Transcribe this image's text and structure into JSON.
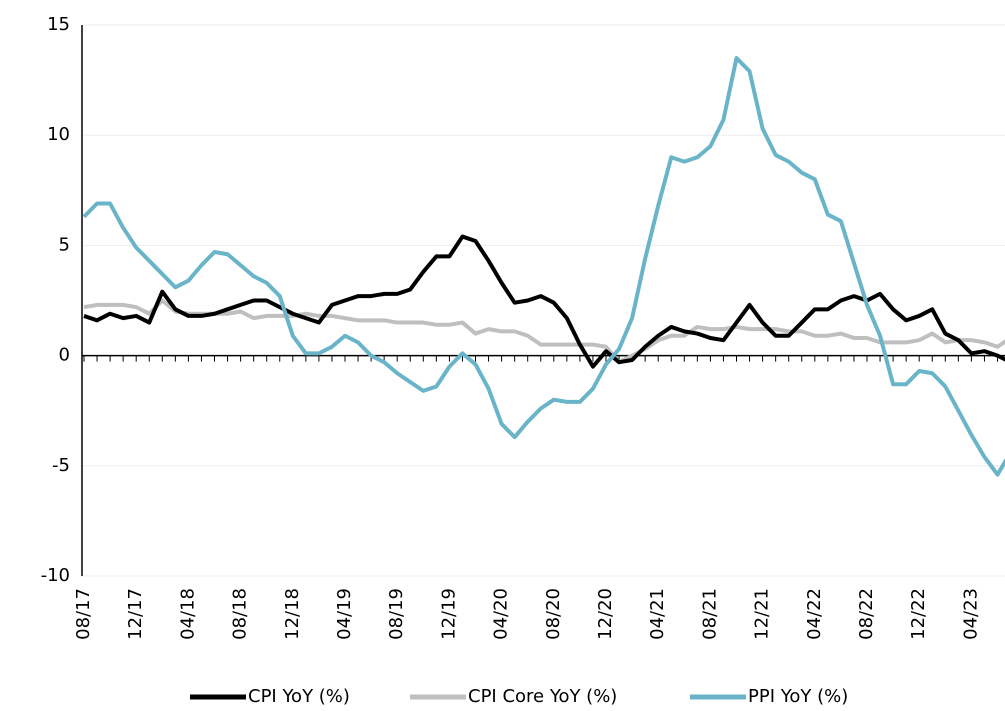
{
  "chart_data": {
    "type": "line",
    "categories": [
      "08/17",
      null,
      null,
      null,
      "12/17",
      null,
      null,
      null,
      "04/18",
      null,
      null,
      null,
      "08/18",
      null,
      null,
      null,
      "12/18",
      null,
      null,
      null,
      "04/19",
      null,
      null,
      null,
      "08/19",
      null,
      null,
      null,
      "12/19",
      null,
      null,
      null,
      "04/20",
      null,
      null,
      null,
      "08/20",
      null,
      null,
      null,
      "12/20",
      null,
      null,
      null,
      "04/21",
      null,
      null,
      null,
      "08/21",
      null,
      null,
      null,
      "12/21",
      null,
      null,
      null,
      "04/22",
      null,
      null,
      null,
      "08/22",
      null,
      null,
      null,
      "12/22",
      null,
      null,
      null,
      "04/23",
      null,
      null,
      null
    ],
    "series": [
      {
        "name": "CPI YoY (%)",
        "color": "#000000",
        "values": [
          1.8,
          1.6,
          1.9,
          1.7,
          1.8,
          1.5,
          2.9,
          2.1,
          1.8,
          1.8,
          1.9,
          2.1,
          2.3,
          2.5,
          2.5,
          2.2,
          1.9,
          1.7,
          1.5,
          2.3,
          2.5,
          2.7,
          2.7,
          2.8,
          2.8,
          3.0,
          3.8,
          4.5,
          4.5,
          5.4,
          5.2,
          4.3,
          3.3,
          2.4,
          2.5,
          2.7,
          2.4,
          1.7,
          0.5,
          -0.5,
          0.2,
          -0.3,
          -0.2,
          0.4,
          0.9,
          1.3,
          1.1,
          1.0,
          0.8,
          0.7,
          1.5,
          2.3,
          1.5,
          0.9,
          0.9,
          1.5,
          2.1,
          2.1,
          2.5,
          2.7,
          2.5,
          2.8,
          2.1,
          1.6,
          1.8,
          2.1,
          1.0,
          0.7,
          0.1,
          0.2,
          0.0,
          -0.3
        ]
      },
      {
        "name": "CPI Core YoY (%)",
        "color": "#bfbfbf",
        "values": [
          2.2,
          2.3,
          2.3,
          2.3,
          2.2,
          1.9,
          2.5,
          2.0,
          1.9,
          1.9,
          1.9,
          1.9,
          2.0,
          1.7,
          1.8,
          1.8,
          1.8,
          1.9,
          1.8,
          1.8,
          1.7,
          1.6,
          1.6,
          1.6,
          1.5,
          1.5,
          1.5,
          1.4,
          1.4,
          1.5,
          1.0,
          1.2,
          1.1,
          1.1,
          0.9,
          0.5,
          0.5,
          0.5,
          0.5,
          0.5,
          0.4,
          -0.3,
          0.0,
          0.3,
          0.7,
          0.9,
          0.9,
          1.3,
          1.2,
          1.2,
          1.3,
          1.2,
          1.2,
          1.2,
          1.1,
          1.1,
          0.9,
          0.9,
          1.0,
          0.8,
          0.8,
          0.6,
          0.6,
          0.6,
          0.7,
          1.0,
          0.6,
          0.7,
          0.7,
          0.6,
          0.4,
          0.8
        ]
      },
      {
        "name": "PPI YoY (%)",
        "color": "#6ab4c9",
        "values": [
          6.3,
          6.9,
          6.9,
          5.8,
          4.9,
          4.3,
          3.7,
          3.1,
          3.4,
          4.1,
          4.7,
          4.6,
          4.1,
          3.6,
          3.3,
          2.7,
          0.9,
          0.1,
          0.1,
          0.4,
          0.9,
          0.6,
          0.0,
          -0.3,
          -0.8,
          -1.2,
          -1.6,
          -1.4,
          -0.5,
          0.1,
          -0.4,
          -1.5,
          -3.1,
          -3.7,
          -3.0,
          -2.4,
          -2.0,
          -2.1,
          -2.1,
          -1.5,
          -0.4,
          0.3,
          1.7,
          4.4,
          6.8,
          9.0,
          8.8,
          9.0,
          9.5,
          10.7,
          13.5,
          12.9,
          10.3,
          9.1,
          8.8,
          8.3,
          8.0,
          6.4,
          6.1,
          4.2,
          2.3,
          0.9,
          -1.3,
          -1.3,
          -0.7,
          -0.8,
          -1.4,
          -2.5,
          -3.6,
          -4.6,
          -5.4,
          -4.4
        ]
      }
    ],
    "ylim": [
      -10,
      15
    ],
    "yticks": [
      -10,
      -5,
      0,
      5,
      10,
      15
    ],
    "grid": true,
    "legend": "bottom"
  }
}
